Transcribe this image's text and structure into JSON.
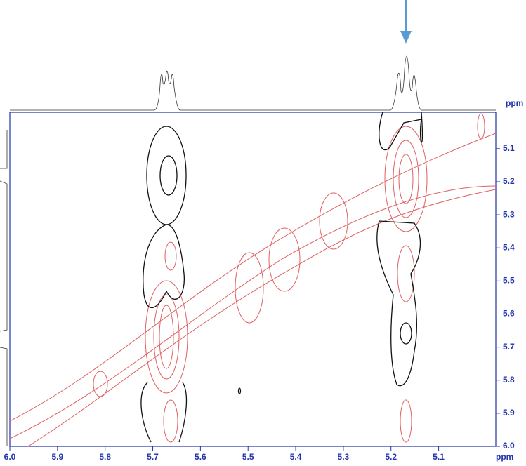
{
  "chart_data": {
    "type": "contour",
    "x_label": "ppm",
    "y_label": "ppm",
    "xlim": [
      6.0,
      4.98
    ],
    "ylim": [
      4.99,
      6.0
    ],
    "xticks": [
      {
        "value": 6.0,
        "label": "6.0"
      },
      5.9,
      5.8,
      5.7,
      5.6,
      5.5,
      5.4,
      5.3,
      5.2,
      5.1
    ],
    "yticks": [
      5.1,
      5.2,
      5.3,
      5.4,
      5.5,
      5.6,
      5.7,
      5.8,
      5.9,
      {
        "value": 6.0,
        "label": "6.0"
      }
    ],
    "axis_color": "#2233aa"
  }
}
